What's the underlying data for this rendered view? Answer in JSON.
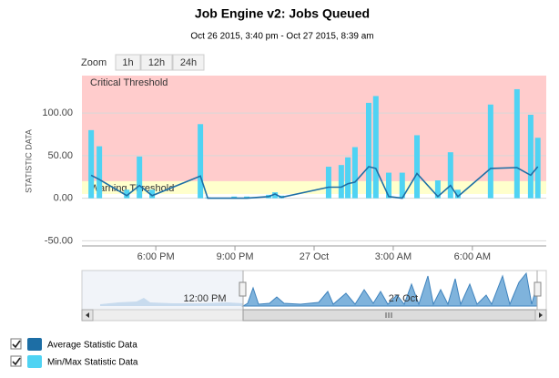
{
  "chart_data": {
    "type": "combo",
    "title": "Job Engine v2: Jobs Queued",
    "subtitle": "Oct 26 2015, 3:40 pm - Oct 27 2015, 8:39 am",
    "y_axis_label": "STATISTIC DATA",
    "xlim": [
      15.2,
      32.8
    ],
    "xticks": [
      {
        "value": 18,
        "label": "6:00 PM"
      },
      {
        "value": 21,
        "label": "9:00 PM"
      },
      {
        "value": 24,
        "label": "27 Oct"
      },
      {
        "value": 27,
        "label": "3:00 AM"
      },
      {
        "value": 30,
        "label": "6:00 AM"
      }
    ],
    "ylim": [
      -56,
      144
    ],
    "yticks": [
      {
        "value": -50,
        "label": "-50.00"
      },
      {
        "value": 0,
        "label": "0.00"
      },
      {
        "value": 50,
        "label": "50.00"
      },
      {
        "value": 100,
        "label": "100.00"
      }
    ],
    "grid": true,
    "plot_bands": [
      {
        "label": "Critical Threshold",
        "from": 20,
        "to": 144,
        "color": "#ffcccc"
      },
      {
        "label": "Warning Threshold",
        "from": 5,
        "to": 20,
        "color": "#ffffcc"
      }
    ],
    "x": [
      15.55,
      15.86,
      16.9,
      17.38,
      17.86,
      19.69,
      19.97,
      20.97,
      21.45,
      22.28,
      22.52,
      22.76,
      24.55,
      25.03,
      25.28,
      25.55,
      26.07,
      26.34,
      26.83,
      27.34,
      27.9,
      28.69,
      29.17,
      29.45,
      30.69,
      31.69,
      32.21,
      32.48
    ],
    "series": [
      {
        "name": "Average Statistic Data",
        "type": "line",
        "color": "#1d6ea5",
        "values": [
          27,
          22,
          3,
          15,
          3,
          26,
          0,
          0,
          0,
          2,
          5,
          1,
          13,
          13,
          17,
          19,
          37,
          35,
          2,
          0,
          29,
          2,
          15,
          2,
          35,
          36,
          27,
          37
        ]
      },
      {
        "name": "Min/Max Statistic Data",
        "type": "bar",
        "color": "#4fd3f3",
        "values": [
          80,
          61,
          10,
          49,
          10,
          87,
          1,
          2,
          2,
          4,
          7,
          3,
          37,
          39,
          48,
          60,
          112,
          120,
          30,
          30,
          74,
          21,
          54,
          10,
          110,
          128,
          98,
          71
        ]
      }
    ],
    "zoom_label": "Zoom",
    "zoom_buttons": [
      "1h",
      "12h",
      "24h"
    ],
    "navigator_labels": [
      "12:00 PM",
      "27 Oct"
    ]
  }
}
